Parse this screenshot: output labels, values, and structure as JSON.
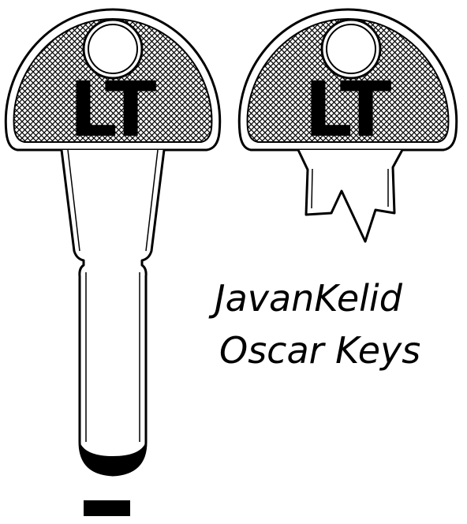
{
  "key_left": {
    "bow_letters": "LT"
  },
  "key_right": {
    "bow_letters": "LT"
  },
  "caption": {
    "line1": "JavanKelid",
    "line2": "Oscar Keys"
  },
  "colors": {
    "ink": "#000000",
    "paper": "#ffffff"
  }
}
